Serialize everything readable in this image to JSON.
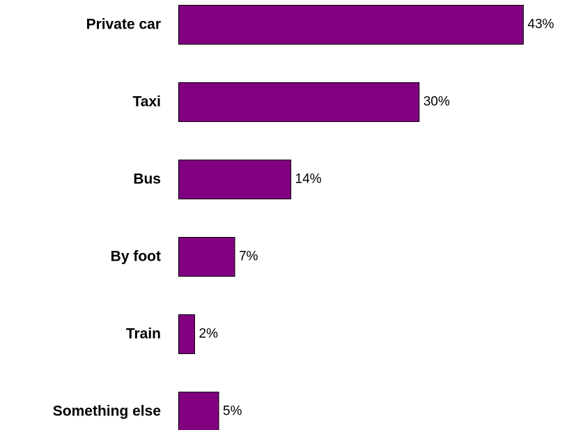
{
  "chart_data": {
    "type": "bar",
    "orientation": "horizontal",
    "categories": [
      "Private car",
      "Taxi",
      "Bus",
      "By foot",
      "Train",
      "Something else"
    ],
    "values": [
      43,
      30,
      14,
      7,
      2,
      5
    ],
    "value_labels": [
      "43%",
      "30%",
      "14%",
      "7%",
      "2%",
      "5%"
    ],
    "unit": "%",
    "bar_color": "#800080",
    "grid": false,
    "legend": "none"
  }
}
